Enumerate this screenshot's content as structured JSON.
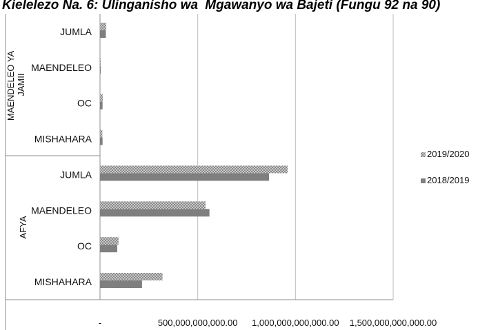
{
  "chart_data": {
    "type": "bar",
    "orientation": "horizontal",
    "title": "Mgawanyo wa Bajeti (Fungu 92 na 90)",
    "title_prefix_fragment": "Kielelezo Na. 6: Ulinganisho wa",
    "groups": [
      {
        "label": "MAENDELEO YA JAMII",
        "categories": [
          "MISHAHARA",
          "OC",
          "MAENDELEO",
          "JUMLA"
        ]
      },
      {
        "label": "AFYA",
        "categories": [
          "MISHAHARA",
          "OC",
          "MAENDELEO",
          "JUMLA"
        ]
      }
    ],
    "categories": [
      "MISHAHARA",
      "OC",
      "MAENDELEO",
      "JUMLA",
      "MISHAHARA",
      "OC",
      "MAENDELEO",
      "JUMLA"
    ],
    "series": [
      {
        "name": "2019/2020",
        "pattern": "checker",
        "color": "#8c8c8c",
        "values": [
          320000000000,
          95000000000,
          540000000000,
          960000000000,
          12000000000,
          14000000000,
          4000000000,
          32000000000
        ]
      },
      {
        "name": "2018/2019",
        "pattern": "solid",
        "color": "#7f7f7f",
        "values": [
          215000000000,
          88000000000,
          560000000000,
          865000000000,
          13000000000,
          13000000000,
          3000000000,
          30000000000
        ]
      }
    ],
    "x_ticks": [
      "-",
      "500,000,000,000.00",
      "1,000,000,000,000.00",
      "1,500,000,000,000.00"
    ],
    "x_tick_values": [
      0,
      500000000000,
      1000000000000,
      1500000000000
    ],
    "xlim": [
      0,
      1500000000000
    ],
    "grid": true,
    "legend_position": "right"
  }
}
